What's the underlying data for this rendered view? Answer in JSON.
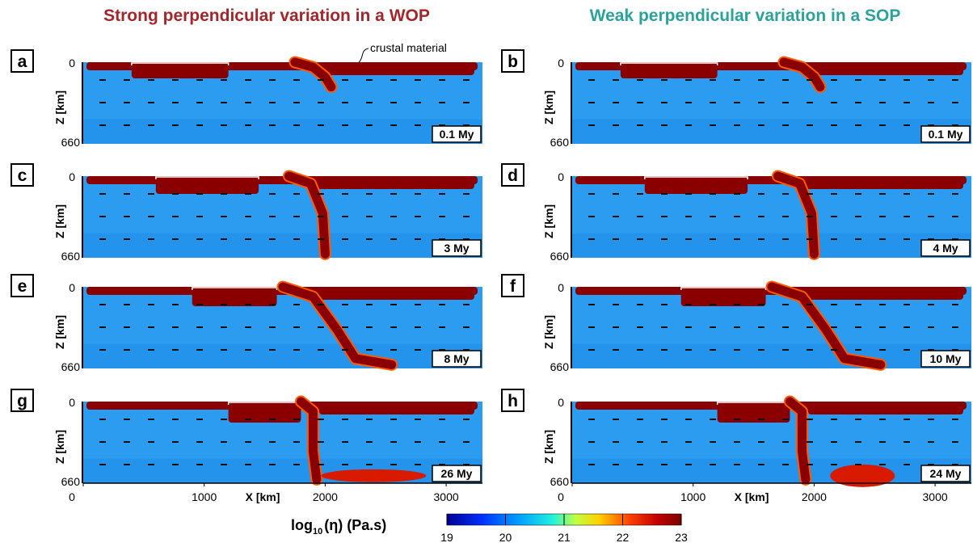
{
  "titles": [
    "Strong perpendicular variation in a WOP",
    "Weak perpendicular variation in a SOP"
  ],
  "annotation": "crustal material",
  "panels": [
    {
      "label": "a",
      "time": "0.1 My"
    },
    {
      "label": "b",
      "time": "0.1 My"
    },
    {
      "label": "c",
      "time": "3 My"
    },
    {
      "label": "d",
      "time": "4 My"
    },
    {
      "label": "e",
      "time": "8 My"
    },
    {
      "label": "f",
      "time": "10 My"
    },
    {
      "label": "g",
      "time": "26 My"
    },
    {
      "label": "h",
      "time": "24 My"
    }
  ],
  "z_axis": {
    "label": "Z [km]",
    "ticks": [
      0,
      660
    ]
  },
  "x_axis": {
    "label": "X [km]",
    "ticks": [
      0,
      1000,
      2000,
      3000
    ]
  },
  "colorbar": {
    "label_parts": [
      "log",
      "10",
      "(η) (Pa.s)"
    ],
    "ticks": [
      19,
      20,
      21,
      22,
      23
    ]
  }
}
